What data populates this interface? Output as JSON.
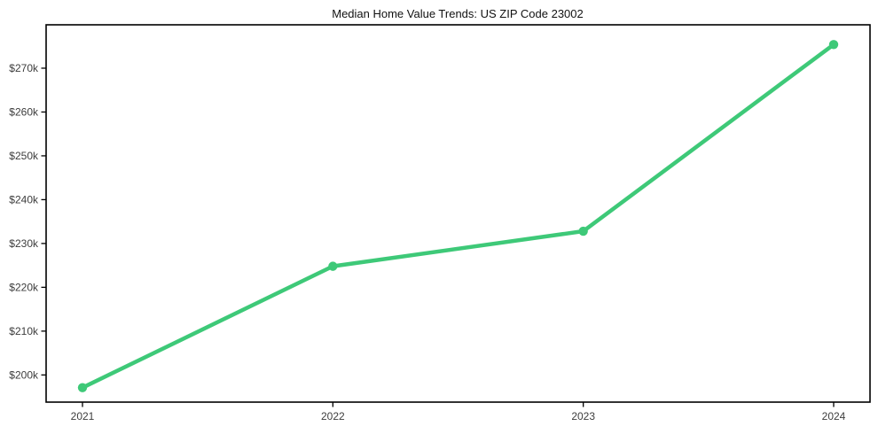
{
  "chart": {
    "line_color": "#3ec978",
    "marker_color": "#3ec978",
    "axis_color": "#000000",
    "tick_label_color": "#3d3d3d",
    "title_color": "#111111",
    "background_color": "#ffffff"
  },
  "chart_data": {
    "type": "line",
    "title": "Median Home Value Trends: US ZIP Code 23002",
    "series_name": "Median Home Value",
    "x": [
      2021,
      2022,
      2023,
      2024
    ],
    "values": [
      197100,
      224800,
      232800,
      275400
    ],
    "xtick_labels": [
      "2021",
      "2022",
      "2023",
      "2024"
    ],
    "ytick_values": [
      200000,
      210000,
      220000,
      230000,
      240000,
      250000,
      260000,
      270000
    ],
    "ytick_labels": [
      "$200k",
      "$210k",
      "$220k",
      "$230k",
      "$240k",
      "$250k",
      "$260k",
      "$270k"
    ],
    "ylim": [
      193800,
      279900
    ],
    "xlabel": "",
    "ylabel": "",
    "grid": false,
    "legend": false,
    "marker": "circle"
  }
}
